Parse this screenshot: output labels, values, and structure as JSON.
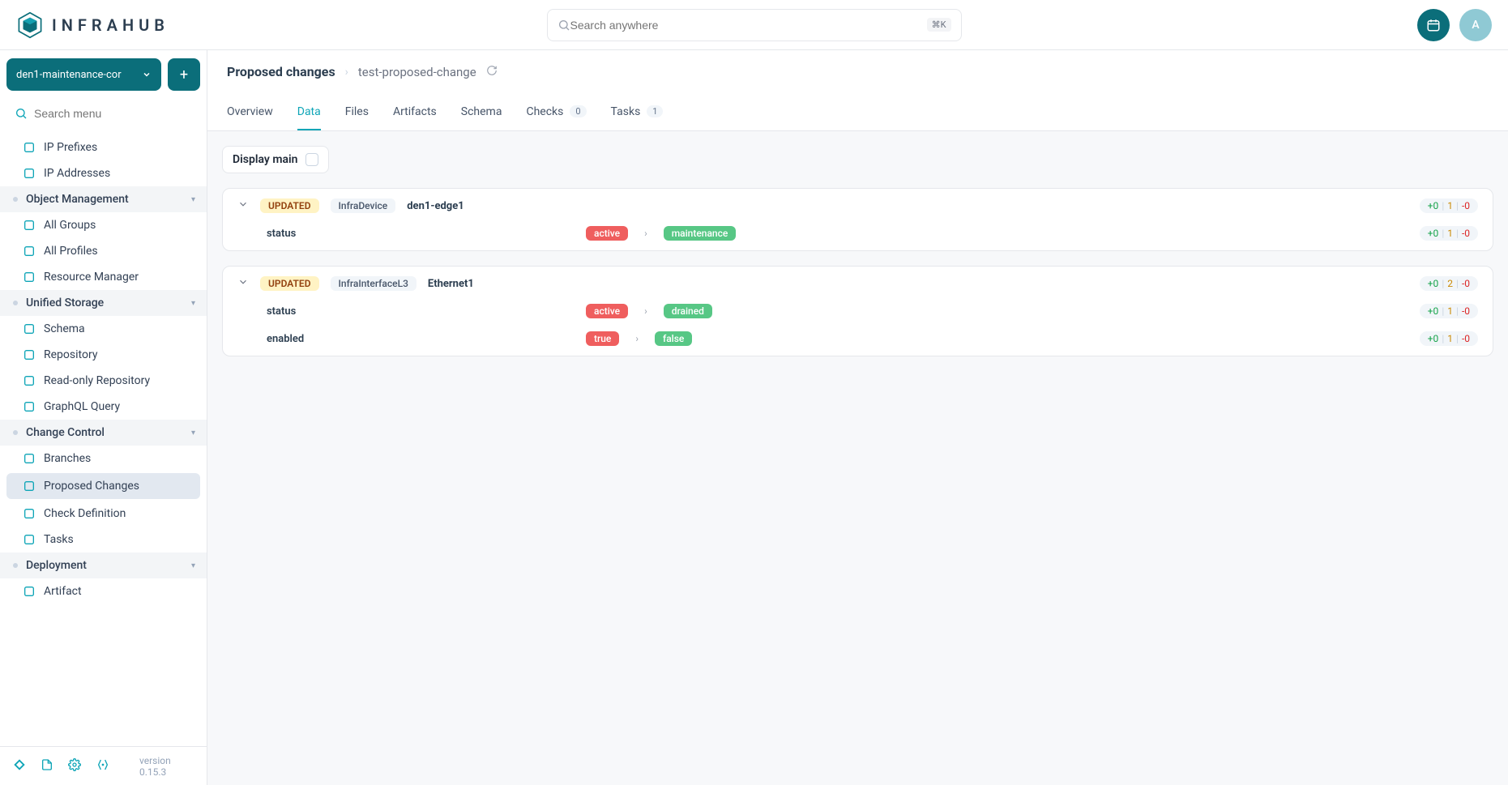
{
  "brand": {
    "name": "INFRAHUB"
  },
  "search": {
    "placeholder": "Search anywhere",
    "shortcut": "⌘K"
  },
  "avatar": {
    "initial": "A"
  },
  "branch_selector": {
    "label": "den1-maintenance-cor"
  },
  "sidebar_search": {
    "placeholder": "Search menu"
  },
  "sidebar": {
    "loose_items": [
      {
        "label": "IP Prefixes"
      },
      {
        "label": "IP Addresses"
      }
    ],
    "groups": [
      {
        "title": "Object Management",
        "items": [
          {
            "label": "All Groups"
          },
          {
            "label": "All Profiles"
          },
          {
            "label": "Resource Manager"
          }
        ]
      },
      {
        "title": "Unified Storage",
        "items": [
          {
            "label": "Schema"
          },
          {
            "label": "Repository"
          },
          {
            "label": "Read-only Repository"
          },
          {
            "label": "GraphQL Query"
          }
        ]
      },
      {
        "title": "Change Control",
        "items": [
          {
            "label": "Branches"
          },
          {
            "label": "Proposed Changes",
            "active": true
          },
          {
            "label": "Check Definition"
          },
          {
            "label": "Tasks"
          }
        ]
      },
      {
        "title": "Deployment",
        "items": [
          {
            "label": "Artifact"
          }
        ]
      }
    ]
  },
  "footer": {
    "version": "version 0.15.3"
  },
  "breadcrumb": {
    "root": "Proposed changes",
    "leaf": "test-proposed-change"
  },
  "tabs": [
    {
      "label": "Overview"
    },
    {
      "label": "Data",
      "active": true
    },
    {
      "label": "Files"
    },
    {
      "label": "Artifacts"
    },
    {
      "label": "Schema"
    },
    {
      "label": "Checks",
      "badge": "0"
    },
    {
      "label": "Tasks",
      "badge": "1"
    }
  ],
  "display_main": {
    "label": "Display main"
  },
  "changes": [
    {
      "status": "UPDATED",
      "type": "InfraDevice",
      "name": "den1-edge1",
      "header_counts": {
        "add": "+0",
        "mod": "1",
        "del": "-0"
      },
      "props": [
        {
          "key": "status",
          "from": "active",
          "to": "maintenance",
          "counts": {
            "add": "+0",
            "mod": "1",
            "del": "-0"
          }
        }
      ]
    },
    {
      "status": "UPDATED",
      "type": "InfraInterfaceL3",
      "name": "Ethernet1",
      "header_counts": {
        "add": "+0",
        "mod": "2",
        "del": "-0"
      },
      "props": [
        {
          "key": "status",
          "from": "active",
          "to": "drained",
          "counts": {
            "add": "+0",
            "mod": "1",
            "del": "-0"
          }
        },
        {
          "key": "enabled",
          "from": "true",
          "to": "false",
          "counts": {
            "add": "+0",
            "mod": "1",
            "del": "-0"
          }
        }
      ]
    }
  ],
  "colors": {
    "accent": "#0b6e7a",
    "tab_active": "#0ea5b7",
    "chip_from": "#ef5e5e",
    "chip_to": "#57c785",
    "pill_updated_bg": "#fff3c4",
    "pill_updated_fg": "#92400e"
  }
}
